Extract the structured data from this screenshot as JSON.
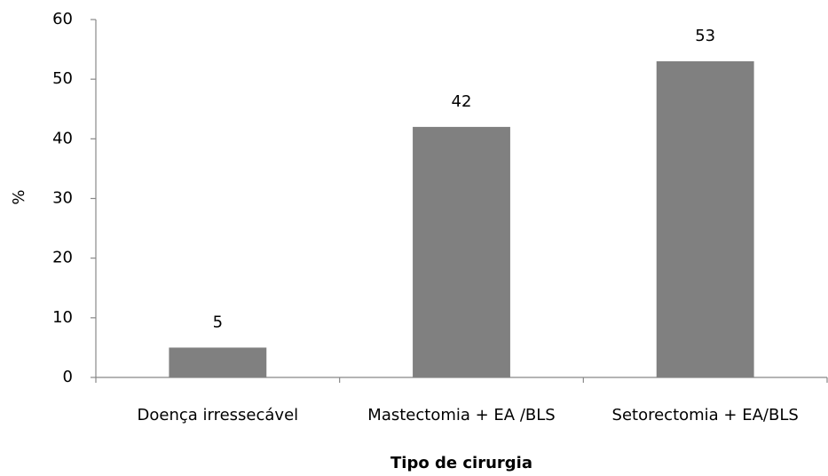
{
  "chart_data": {
    "type": "bar",
    "x_label": "Tipo de cirurgia",
    "y_label": "%",
    "categories": [
      "Doença irressecável",
      "Mastectomia + EA /BLS",
      "Setorectomia + EA/BLS"
    ],
    "values": [
      5,
      42,
      53
    ],
    "color": "#808080",
    "ylim": [
      0,
      60
    ],
    "yticks": [
      0,
      10,
      20,
      30,
      40,
      50,
      60
    ],
    "grid": false
  }
}
